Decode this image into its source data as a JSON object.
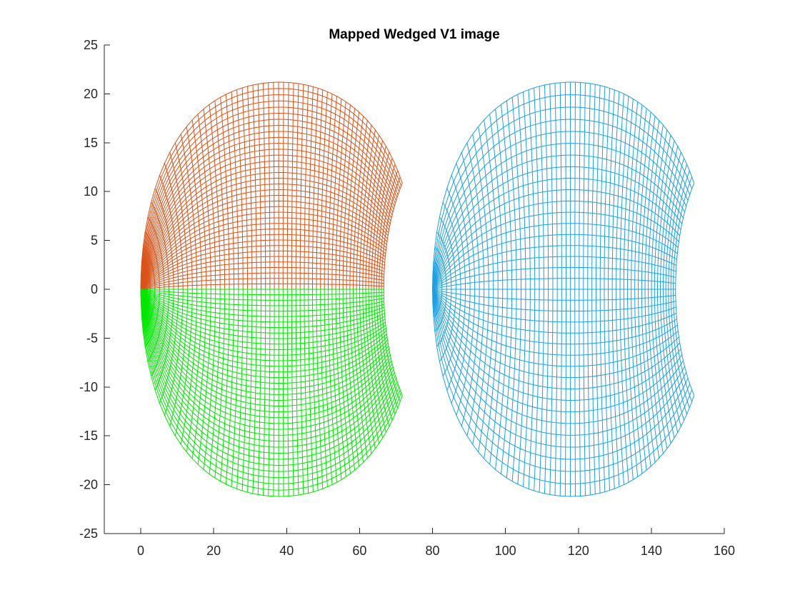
{
  "chart_data": {
    "type": "line",
    "title": "Mapped Wedged V1 image",
    "xlabel": "",
    "ylabel": "",
    "xlim": [
      -10,
      160
    ],
    "ylim": [
      -25,
      25
    ],
    "xticks": [
      0,
      20,
      40,
      60,
      80,
      100,
      120,
      140,
      160
    ],
    "yticks": [
      -25,
      -20,
      -15,
      -10,
      -5,
      0,
      5,
      10,
      15,
      20,
      25
    ],
    "grid": false,
    "legend": "none",
    "series": [
      {
        "color": "#D95319",
        "kind": "wedge-mesh",
        "x_offset": 0,
        "y_sign": 1,
        "outer_edge_x": [
          0,
          2,
          5,
          10,
          20,
          30,
          38,
          45,
          55,
          63,
          68,
          72,
          72
        ],
        "outer_edge_y": [
          0,
          6,
          9.5,
          13.5,
          18,
          20.5,
          21.2,
          21,
          19.5,
          17,
          14.5,
          11,
          10.8
        ]
      },
      {
        "color": "#00E600",
        "kind": "wedge-mesh",
        "x_offset": 0,
        "y_sign": -1,
        "outer_edge_x": [
          0,
          2,
          5,
          10,
          20,
          30,
          38,
          45,
          55,
          63,
          68,
          72,
          72
        ],
        "outer_edge_y": [
          0,
          -6,
          -9.5,
          -13.5,
          -18,
          -20.5,
          -21.2,
          -21,
          -19.5,
          -17,
          -14.5,
          -11,
          -10.8
        ]
      },
      {
        "color": "#1EA0E0",
        "kind": "wedge-mesh",
        "x_offset": 80,
        "y_sign": 0,
        "outer_edge_x": [
          80,
          82,
          88,
          98,
          108,
          118,
          128,
          138,
          145,
          150,
          151
        ],
        "outer_edge_y": [
          0,
          6.5,
          12,
          16.3,
          18.2,
          18.8,
          18.2,
          16,
          13.5,
          10.5,
          9.8
        ]
      }
    ]
  }
}
